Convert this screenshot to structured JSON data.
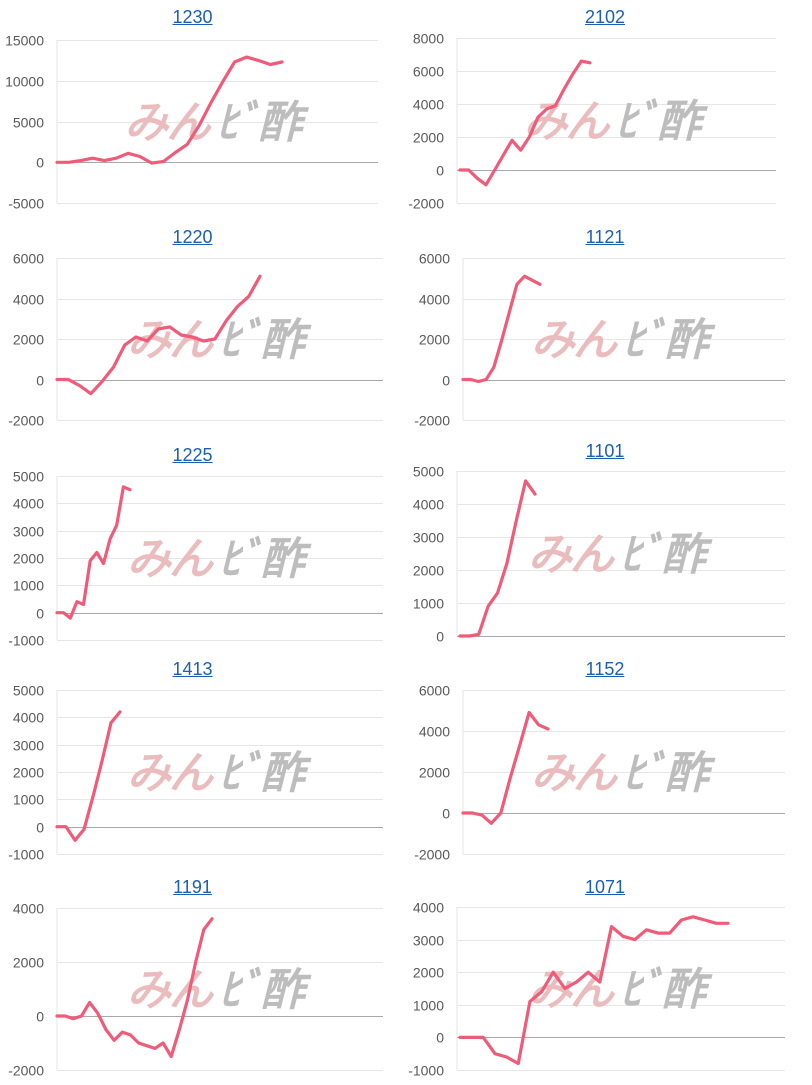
{
  "colors": {
    "line": "#ef5b78",
    "grid": "#e6e6e6",
    "zero": "#a8a8a8",
    "tick": "#595959",
    "title": "#1a5fb4",
    "watermark_pink": "#ebbcbd",
    "watermark_gray": "#bdbdbd"
  },
  "watermark": {
    "part1": "みん",
    "part2": "ﾋﾞ酢"
  },
  "chart_data": [
    {
      "type": "line",
      "title": "1230",
      "ylim": [
        -5000,
        15000
      ],
      "yticks": [
        -5000,
        0,
        5000,
        10000,
        15000
      ],
      "series": [
        {
          "values": [
            0,
            0,
            200,
            500,
            200,
            500,
            1100,
            700,
            -100,
            100,
            1200,
            2200,
            4500,
            7300,
            9900,
            12300,
            12900,
            12500,
            12000,
            12300
          ]
        }
      ]
    },
    {
      "type": "line",
      "title": "2102",
      "ylim": [
        -2000,
        8000
      ],
      "yticks": [
        -2000,
        0,
        2000,
        4000,
        6000,
        8000
      ],
      "series": [
        {
          "values": [
            0,
            0,
            -500,
            -900,
            0,
            900,
            1800,
            1200,
            2000,
            3200,
            3700,
            3900,
            4900,
            5800,
            6600,
            6500
          ]
        }
      ]
    },
    {
      "type": "line",
      "title": "1220",
      "ylim": [
        -2000,
        6000
      ],
      "yticks": [
        -2000,
        0,
        2000,
        4000,
        6000
      ],
      "series": [
        {
          "values": [
            0,
            0,
            -300,
            -700,
            -100,
            600,
            1700,
            2100,
            1900,
            2500,
            2600,
            2200,
            2100,
            1900,
            2000,
            2900,
            3600,
            4100,
            5100
          ]
        }
      ]
    },
    {
      "type": "line",
      "title": "1121",
      "ylim": [
        -2000,
        6000
      ],
      "yticks": [
        -2000,
        0,
        2000,
        4000,
        6000
      ],
      "series": [
        {
          "values": [
            0,
            0,
            -100,
            0,
            600,
            1900,
            3300,
            4700,
            5100,
            4900,
            4700
          ]
        }
      ]
    },
    {
      "type": "line",
      "title": "1225",
      "ylim": [
        -1000,
        5000
      ],
      "yticks": [
        -1000,
        0,
        1000,
        2000,
        3000,
        4000,
        5000
      ],
      "series": [
        {
          "values": [
            0,
            0,
            -200,
            400,
            300,
            1900,
            2200,
            1800,
            2700,
            3200,
            4600,
            4500
          ]
        }
      ]
    },
    {
      "type": "line",
      "title": "1101",
      "ylim": [
        0,
        5000
      ],
      "yticks": [
        0,
        1000,
        2000,
        3000,
        4000,
        5000
      ],
      "series": [
        {
          "values": [
            0,
            0,
            50,
            900,
            1300,
            2200,
            3500,
            4700,
            4300
          ]
        }
      ]
    },
    {
      "type": "line",
      "title": "1413",
      "ylim": [
        -1000,
        5000
      ],
      "yticks": [
        -1000,
        0,
        1000,
        2000,
        3000,
        4000,
        5000
      ],
      "series": [
        {
          "values": [
            0,
            0,
            -500,
            -100,
            1100,
            2400,
            3800,
            4200
          ]
        }
      ]
    },
    {
      "type": "line",
      "title": "1152",
      "ylim": [
        -2000,
        6000
      ],
      "yticks": [
        -2000,
        0,
        2000,
        4000,
        6000
      ],
      "series": [
        {
          "values": [
            0,
            0,
            -100,
            -500,
            0,
            1700,
            3300,
            4900,
            4300,
            4100
          ]
        }
      ]
    },
    {
      "type": "line",
      "title": "1191",
      "ylim": [
        -2000,
        4000
      ],
      "yticks": [
        -2000,
        0,
        2000,
        4000
      ],
      "series": [
        {
          "values": [
            0,
            0,
            -100,
            0,
            500,
            100,
            -500,
            -900,
            -600,
            -700,
            -1000,
            -1100,
            -1200,
            -1000,
            -1500,
            -500,
            600,
            2000,
            3200,
            3600
          ]
        }
      ]
    },
    {
      "type": "line",
      "title": "1071",
      "ylim": [
        -1000,
        4000
      ],
      "yticks": [
        -1000,
        0,
        1000,
        2000,
        3000,
        4000
      ],
      "series": [
        {
          "values": [
            0,
            0,
            0,
            -500,
            -600,
            -800,
            1100,
            1400,
            2000,
            1500,
            1700,
            2000,
            1700,
            3400,
            3100,
            3000,
            3300,
            3200,
            3200,
            3600,
            3700,
            3600,
            3500,
            3500
          ]
        }
      ]
    }
  ]
}
